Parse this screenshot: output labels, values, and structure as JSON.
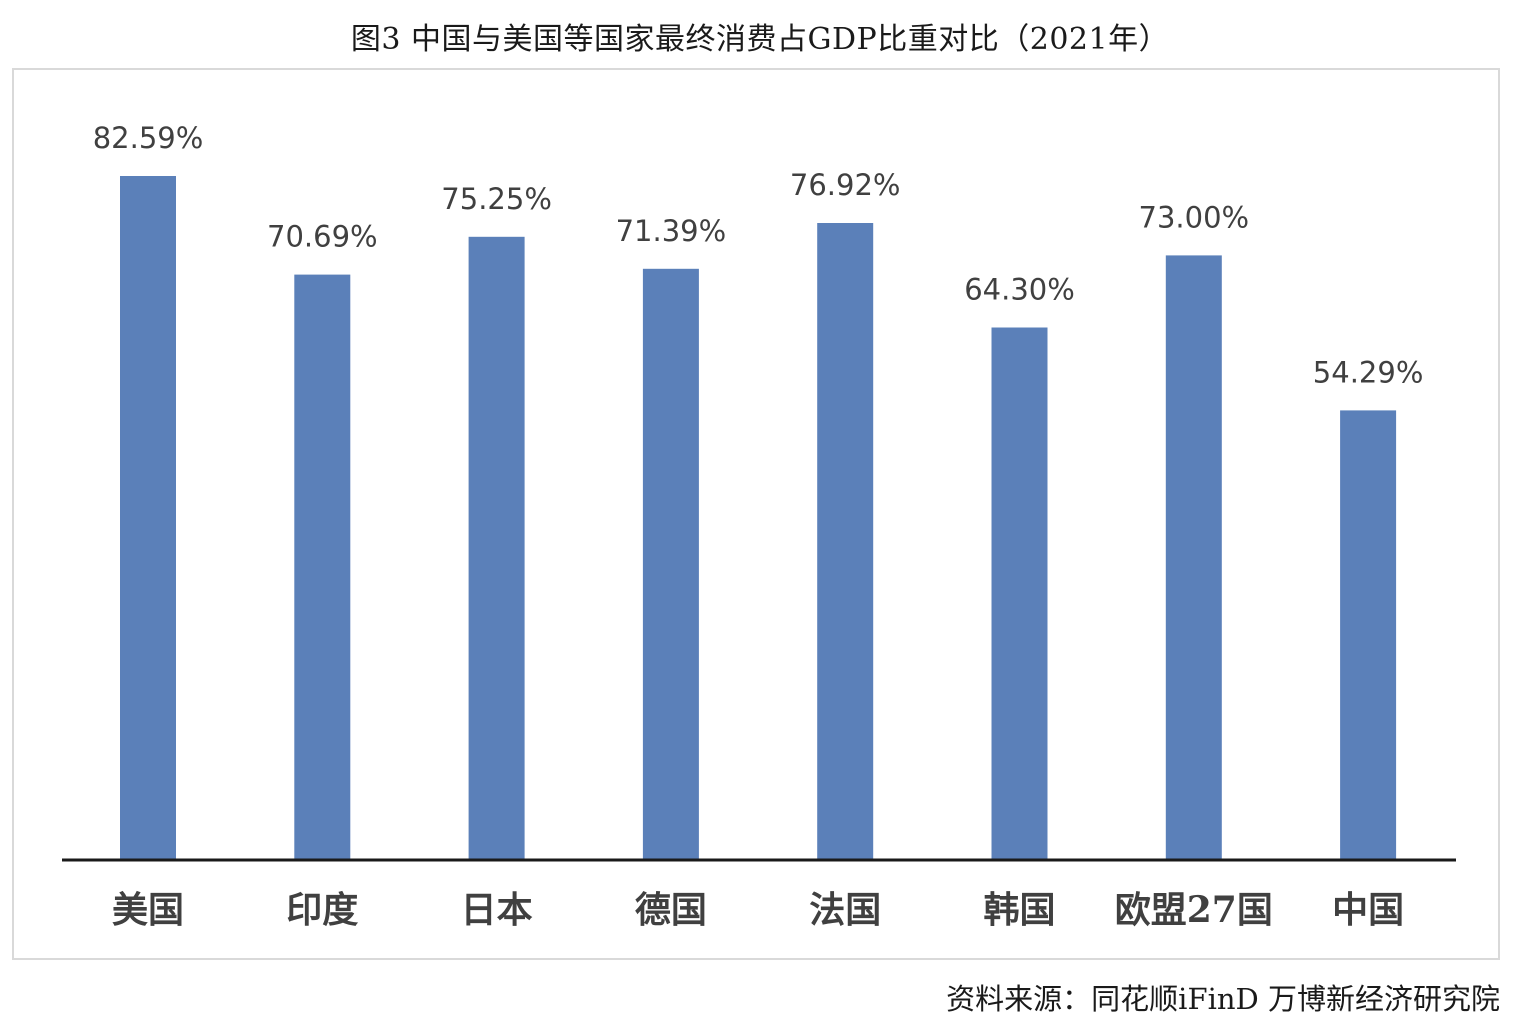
{
  "header": {
    "title": "图3 中国与美国等国家最终消费占GDP比重对比（2021年）"
  },
  "footer": {
    "source": "资料来源：同花顺iFinD 万博新经济研究院"
  },
  "chart_data": {
    "type": "bar",
    "title": "图3 中国与美国等国家最终消费占GDP比重对比（2021年）",
    "categories": [
      "美国",
      "印度",
      "日本",
      "德国",
      "法国",
      "韩国",
      "欧盟27国",
      "中国"
    ],
    "values": [
      82.59,
      70.69,
      75.25,
      71.39,
      76.92,
      64.3,
      73.0,
      54.29
    ],
    "value_labels": [
      "82.59%",
      "70.69%",
      "75.25%",
      "71.39%",
      "76.92%",
      "64.30%",
      "73.00%",
      "54.29%"
    ],
    "unit": "%",
    "ylim": [
      0,
      82.59
    ],
    "grid": false,
    "legend": "none",
    "bar_color": "#5b80b9",
    "axis_color": "#1a1a1a"
  }
}
